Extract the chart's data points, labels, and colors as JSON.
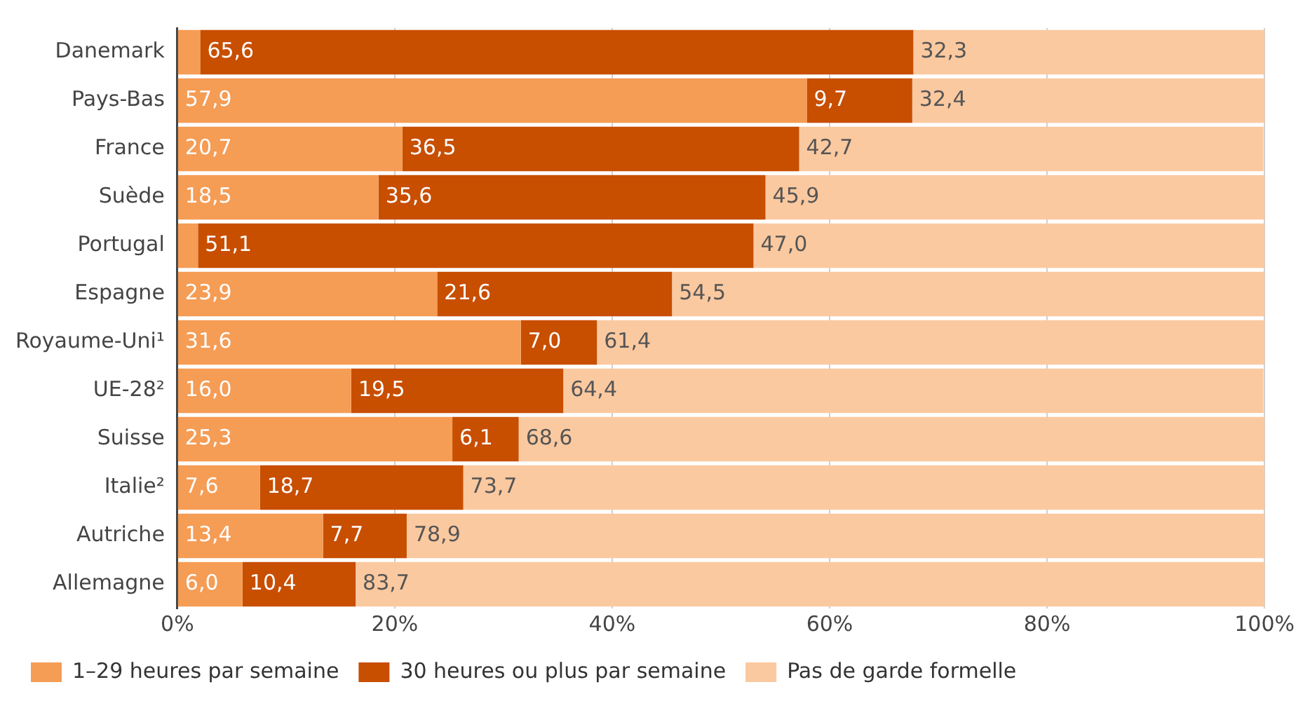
{
  "chart_data": {
    "type": "bar",
    "orientation": "horizontal",
    "stacked": true,
    "categories": [
      "Danemark",
      "Pays-Bas",
      "France",
      "Suède",
      "Portugal",
      "Espagne",
      "Royaume-Uni¹",
      "UE-28²",
      "Suisse",
      "Italie²",
      "Autriche",
      "Allemagne"
    ],
    "series": [
      {
        "name": "1–29 heures par semaine",
        "color": "#f59c55",
        "values": [
          2.1,
          57.9,
          20.7,
          18.5,
          1.9,
          23.9,
          31.6,
          16.0,
          25.3,
          7.6,
          13.4,
          6.0
        ],
        "value_labels": [
          null,
          "57,9",
          "20,7",
          "18,5",
          null,
          "23,9",
          "31,6",
          "16,0",
          "25,3",
          "7,6",
          "13,4",
          "6,0"
        ]
      },
      {
        "name": "30 heures ou plus par semaine",
        "color": "#c84e00",
        "values": [
          65.6,
          9.7,
          36.5,
          35.6,
          51.1,
          21.6,
          7.0,
          19.5,
          6.1,
          18.7,
          7.7,
          10.4
        ],
        "value_labels": [
          "65,6",
          "9,7",
          "36,5",
          "35,6",
          "51,1",
          "21,6",
          "7,0",
          "19,5",
          "6,1",
          "18,7",
          "7,7",
          "10,4"
        ]
      },
      {
        "name": "Pas de garde formelle",
        "color": "#fbc9a0",
        "values": [
          32.3,
          32.4,
          42.7,
          45.9,
          47.0,
          54.5,
          61.4,
          64.4,
          68.6,
          73.7,
          78.9,
          83.7
        ],
        "value_labels": [
          "32,3",
          "32,4",
          "42,7",
          "45,9",
          "47,0",
          "54,5",
          "61,4",
          "64,4",
          "68,6",
          "73,7",
          "78,9",
          "83,7"
        ]
      }
    ],
    "xlim": [
      0,
      100
    ],
    "xticks": [
      {
        "value": 0,
        "label": "0%"
      },
      {
        "value": 20,
        "label": "20%"
      },
      {
        "value": 40,
        "label": "40%"
      },
      {
        "value": 60,
        "label": "60%"
      },
      {
        "value": 80,
        "label": "80%"
      },
      {
        "value": 100,
        "label": "100%"
      }
    ],
    "grid": "x",
    "legend": "bottom left"
  }
}
